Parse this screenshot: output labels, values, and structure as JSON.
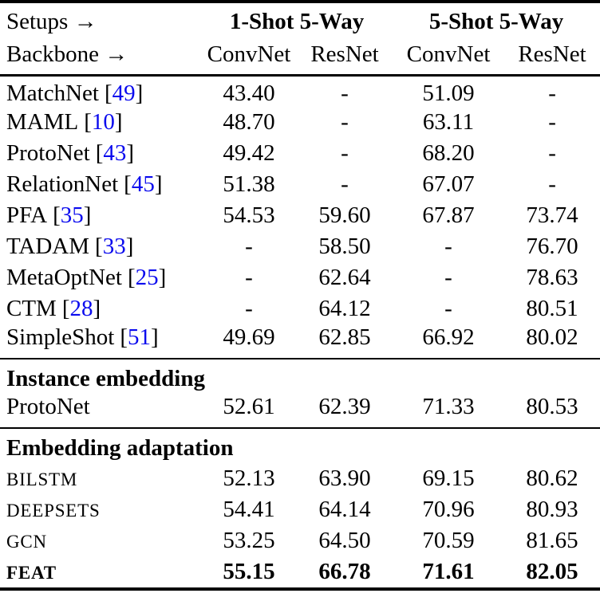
{
  "colors": {
    "citation": "#0a0aee",
    "text": "#000000",
    "background": "#ffffff"
  },
  "punct": {
    "lbracket": "[",
    "rbracket": "]"
  },
  "header": {
    "setups_label": "Setups →",
    "backbone_label": "Backbone →",
    "setup_groups": [
      "1-Shot 5-Way",
      "5-Shot 5-Way"
    ],
    "backbones": [
      "ConvNet",
      "ResNet",
      "ConvNet",
      "ResNet"
    ]
  },
  "baselines": [
    {
      "name": "MatchNet",
      "cite": "49",
      "values": [
        "43.40",
        "-",
        "51.09",
        "-"
      ]
    },
    {
      "name": "MAML",
      "cite": "10",
      "values": [
        "48.70",
        "-",
        "63.11",
        "-"
      ]
    },
    {
      "name": "ProtoNet",
      "cite": "43",
      "values": [
        "49.42",
        "-",
        "68.20",
        "-"
      ]
    },
    {
      "name": "RelationNet",
      "cite": "45",
      "values": [
        "51.38",
        "-",
        "67.07",
        "-"
      ]
    },
    {
      "name": "PFA",
      "cite": "35",
      "values": [
        "54.53",
        "59.60",
        "67.87",
        "73.74"
      ]
    },
    {
      "name": "TADAM",
      "cite": "33",
      "values": [
        "-",
        "58.50",
        "-",
        "76.70"
      ]
    },
    {
      "name": "MetaOptNet",
      "cite": "25",
      "values": [
        "-",
        "62.64",
        "-",
        "78.63"
      ]
    },
    {
      "name": "CTM",
      "cite": "28",
      "values": [
        "-",
        "64.12",
        "-",
        "80.51"
      ]
    },
    {
      "name": "SimpleShot",
      "cite": "51",
      "values": [
        "49.69",
        "62.85",
        "66.92",
        "80.02"
      ]
    }
  ],
  "instance_embedding": {
    "title": "Instance embedding",
    "rows": [
      {
        "name": "ProtoNet",
        "values": [
          "52.61",
          "62.39",
          "71.33",
          "80.53"
        ]
      }
    ]
  },
  "embedding_adaptation": {
    "title": "Embedding adaptation",
    "rows": [
      {
        "name": "BILSTM",
        "values": [
          "52.13",
          "63.90",
          "69.15",
          "80.62"
        ]
      },
      {
        "name": "DEEPSETS",
        "values": [
          "54.41",
          "64.14",
          "70.96",
          "80.93"
        ]
      },
      {
        "name": "GCN",
        "values": [
          "53.25",
          "64.50",
          "70.59",
          "81.65"
        ]
      },
      {
        "name": "FEAT",
        "values": [
          "55.15",
          "66.78",
          "71.61",
          "82.05"
        ]
      }
    ]
  }
}
